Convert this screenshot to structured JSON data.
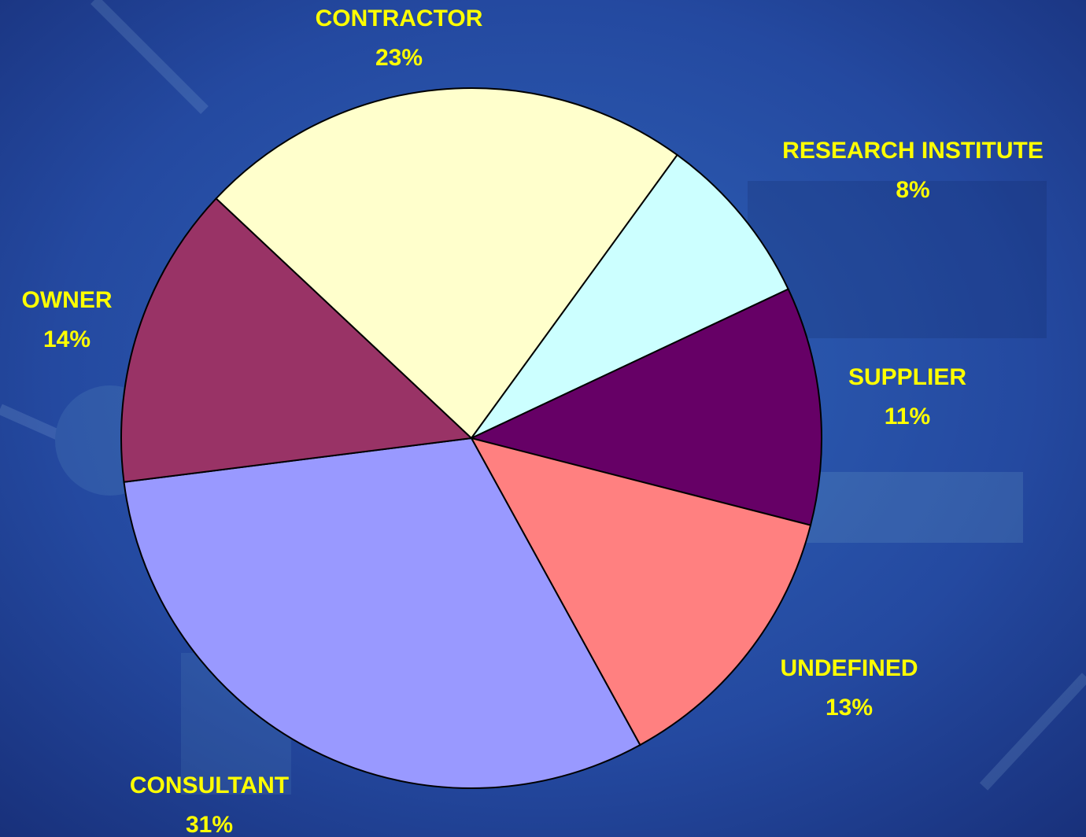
{
  "chart_data": {
    "type": "pie",
    "categories": [
      "CONTRACTOR",
      "RESEARCH INSTITUTE",
      "SUPPLIER",
      "UNDEFINED",
      "CONSULTANT",
      "OWNER"
    ],
    "values": [
      23,
      8,
      11,
      13,
      31,
      14
    ],
    "value_labels": [
      "23%",
      "8%",
      "11%",
      "13%",
      "31%",
      "14%"
    ],
    "colors": [
      "#ffffcc",
      "#ccffff",
      "#660066",
      "#ff8080",
      "#9999ff",
      "#993366"
    ]
  }
}
